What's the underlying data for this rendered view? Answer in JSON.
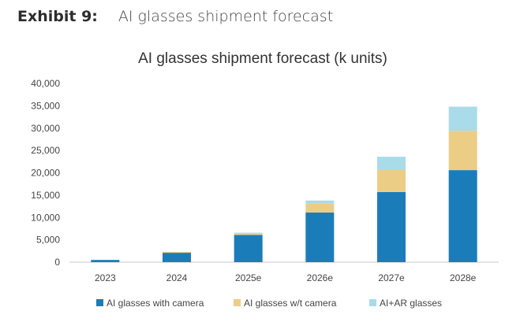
{
  "exhibit": {
    "label": "Exhibit 9:",
    "title": "AI glasses shipment forecast"
  },
  "chart_data": {
    "type": "bar",
    "stacked": true,
    "title": "AI glasses shipment forecast (k units)",
    "categories": [
      "2023",
      "2024",
      "2025e",
      "2026e",
      "2027e",
      "2028e"
    ],
    "series": [
      {
        "name": "AI glasses with camera",
        "color": "#1a7db9",
        "values": [
          500,
          2100,
          6100,
          11100,
          15700,
          20600
        ]
      },
      {
        "name": "AI glasses w/t camera",
        "color": "#eccd86",
        "values": [
          0,
          200,
          400,
          2000,
          5000,
          8800
        ]
      },
      {
        "name": "AI+AR glasses",
        "color": "#a9dbe8",
        "values": [
          0,
          0,
          100,
          700,
          2900,
          5400
        ]
      }
    ],
    "ylim": [
      0,
      40000
    ],
    "yticks": [
      0,
      5000,
      10000,
      15000,
      20000,
      25000,
      30000,
      35000,
      40000
    ],
    "ytick_labels": [
      "0",
      "5,000",
      "10,000",
      "15,000",
      "20,000",
      "25,000",
      "30,000",
      "35,000",
      "40,000"
    ],
    "grid": false,
    "legend_position": "bottom"
  }
}
